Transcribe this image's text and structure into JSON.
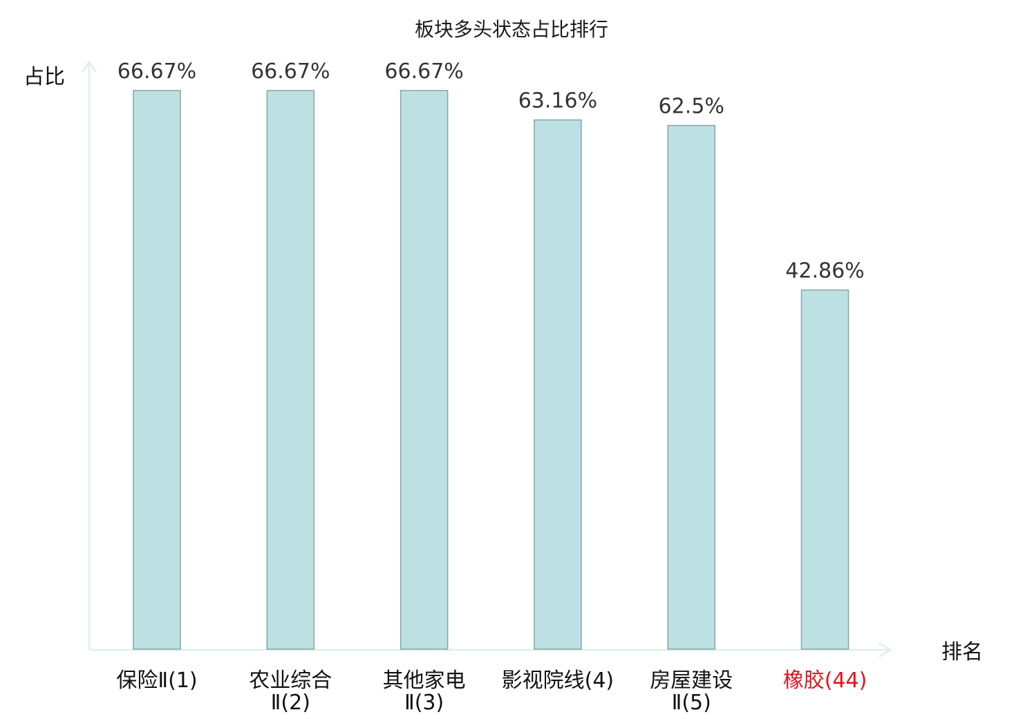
{
  "chart_data": {
    "type": "bar",
    "title": "板块多头状态占比排行",
    "ylabel": "占比",
    "xlabel": "排名",
    "ylim": [
      0,
      70
    ],
    "grid": false,
    "legend": "none",
    "bar_color": "#bde1e3",
    "bar_stroke": "#86a3a6",
    "axis_color": "#e0f2ee",
    "highlight_color": "#e0141e",
    "categories": [
      {
        "line1": "保险Ⅱ(1)",
        "line2": "",
        "highlight": false
      },
      {
        "line1": "农业综合",
        "line2": "Ⅱ(2)",
        "highlight": false
      },
      {
        "line1": "其他家电",
        "line2": "Ⅱ(3)",
        "highlight": false
      },
      {
        "line1": "影视院线(4)",
        "line2": "",
        "highlight": false
      },
      {
        "line1": "房屋建设",
        "line2": "Ⅱ(5)",
        "highlight": false
      },
      {
        "line1": "橡胶(44)",
        "line2": "",
        "highlight": true
      }
    ],
    "values": [
      66.67,
      66.67,
      66.67,
      63.16,
      62.5,
      42.86
    ],
    "value_labels": [
      "66.67%",
      "66.67%",
      "66.67%",
      "63.16%",
      "62.5%",
      "42.86%"
    ]
  }
}
